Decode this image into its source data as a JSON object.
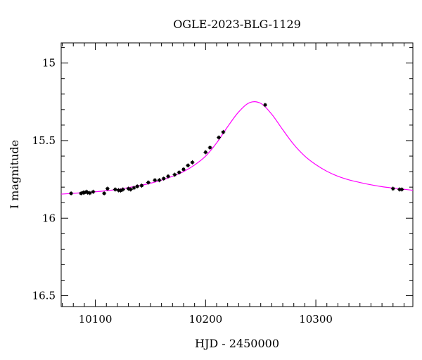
{
  "chart_data": {
    "type": "scatter",
    "title": "OGLE-2023-BLG-1129",
    "xlabel": "HJD - 2450000",
    "ylabel": "I magnitude",
    "xlim": [
      10069,
      10388
    ],
    "ylim": [
      16.57,
      14.87
    ],
    "y_inverted": true,
    "grid": false,
    "x_ticks": [
      10100,
      10200,
      10300
    ],
    "y_ticks": [
      15,
      15.5,
      16,
      16.5
    ],
    "x_tick_labels": [
      "10100",
      "10200",
      "10300"
    ],
    "y_tick_labels": [
      "15",
      "15.5",
      "16",
      "16.5"
    ],
    "series": [
      {
        "kind": "points",
        "color": "#000000",
        "x": [
          10078,
          10087,
          10089,
          10090,
          10092,
          10093,
          10095,
          10098,
          10108,
          10111,
          10118,
          10121,
          10123,
          10125,
          10130,
          10132,
          10135,
          10138,
          10142,
          10148,
          10154,
          10158,
          10162,
          10166,
          10172,
          10176,
          10180,
          10184,
          10188,
          10200,
          10204,
          10212,
          10216,
          10254,
          10370,
          10376,
          10378
        ],
        "y": [
          15.84,
          15.84,
          15.835,
          15.835,
          15.83,
          15.835,
          15.838,
          15.83,
          15.84,
          15.81,
          15.815,
          15.82,
          15.822,
          15.815,
          15.81,
          15.815,
          15.805,
          15.795,
          15.79,
          15.77,
          15.755,
          15.755,
          15.745,
          15.73,
          15.72,
          15.705,
          15.685,
          15.66,
          15.64,
          15.575,
          15.545,
          15.48,
          15.445,
          15.27,
          15.81,
          15.815,
          15.815
        ]
      },
      {
        "kind": "model",
        "color": "#ff00ff",
        "x": [
          10069,
          10080,
          10090,
          10100,
          10110,
          10120,
          10130,
          10140,
          10150,
          10160,
          10170,
          10180,
          10190,
          10200,
          10210,
          10220,
          10230,
          10240,
          10250,
          10260,
          10270,
          10280,
          10290,
          10300,
          10310,
          10320,
          10330,
          10340,
          10350,
          10360,
          10370,
          10380,
          10388
        ],
        "y": [
          15.845,
          15.84,
          15.835,
          15.83,
          15.823,
          15.815,
          15.803,
          15.79,
          15.775,
          15.755,
          15.73,
          15.7,
          15.657,
          15.6,
          15.515,
          15.41,
          15.315,
          15.255,
          15.26,
          15.33,
          15.43,
          15.525,
          15.6,
          15.655,
          15.698,
          15.73,
          15.753,
          15.77,
          15.785,
          15.797,
          15.806,
          15.814,
          15.82
        ]
      }
    ]
  }
}
